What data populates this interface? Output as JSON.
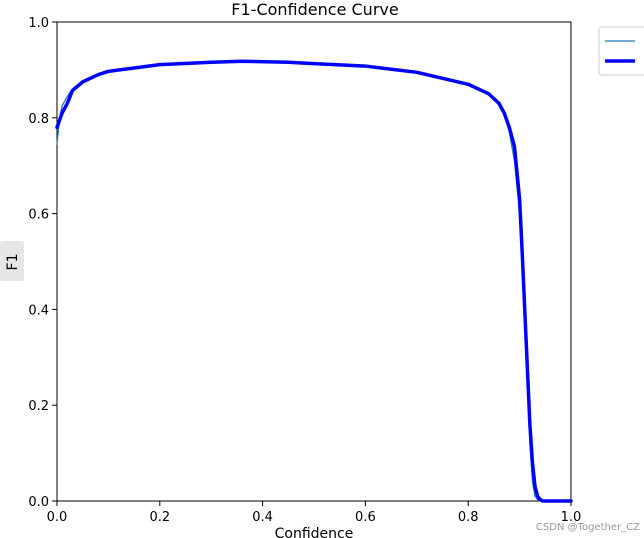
{
  "chart_data": {
    "type": "line",
    "title": "F1-Confidence Curve",
    "xlabel": "Confidence",
    "ylabel": "F1",
    "xlim": [
      0.0,
      1.0
    ],
    "ylim": [
      0.0,
      1.0
    ],
    "xticks": [
      "0.0",
      "0.2",
      "0.4",
      "0.6",
      "0.8",
      "1.0"
    ],
    "yticks": [
      "0.0",
      "0.2",
      "0.4",
      "0.6",
      "0.8",
      "1.0"
    ],
    "grid": false,
    "legend": "upper-right-outside",
    "series": [
      {
        "color": "#1f77b4",
        "style": "thin",
        "x": [
          0.0,
          0.005,
          0.01,
          0.02,
          0.03,
          0.05,
          0.08,
          0.1,
          0.15,
          0.2,
          0.3,
          0.36,
          0.45,
          0.5,
          0.6,
          0.7,
          0.8,
          0.84,
          0.86,
          0.87,
          0.88,
          0.89,
          0.9,
          0.905,
          0.91,
          0.915,
          0.92,
          0.925,
          0.93,
          0.935,
          0.94,
          0.95,
          1.0
        ],
        "y": [
          0.745,
          0.8,
          0.825,
          0.845,
          0.86,
          0.875,
          0.89,
          0.898,
          0.905,
          0.911,
          0.916,
          0.918,
          0.916,
          0.913,
          0.908,
          0.895,
          0.87,
          0.85,
          0.83,
          0.81,
          0.77,
          0.71,
          0.6,
          0.5,
          0.38,
          0.25,
          0.12,
          0.04,
          0.01,
          0.003,
          0.0,
          0.0,
          0.0
        ]
      },
      {
        "color": "#0000ff",
        "style": "thick",
        "x": [
          0.0,
          0.005,
          0.01,
          0.02,
          0.03,
          0.05,
          0.08,
          0.1,
          0.15,
          0.2,
          0.3,
          0.36,
          0.45,
          0.5,
          0.6,
          0.7,
          0.8,
          0.84,
          0.86,
          0.87,
          0.88,
          0.89,
          0.9,
          0.905,
          0.91,
          0.915,
          0.92,
          0.925,
          0.93,
          0.935,
          0.94,
          0.945,
          0.95,
          1.0
        ],
        "y": [
          0.78,
          0.795,
          0.81,
          0.83,
          0.857,
          0.875,
          0.89,
          0.897,
          0.904,
          0.911,
          0.916,
          0.918,
          0.916,
          0.913,
          0.908,
          0.895,
          0.87,
          0.85,
          0.83,
          0.81,
          0.78,
          0.74,
          0.63,
          0.52,
          0.4,
          0.28,
          0.16,
          0.08,
          0.03,
          0.01,
          0.003,
          0.0,
          0.0,
          0.0
        ]
      }
    ]
  },
  "watermark": "CSDN @Together_CZ"
}
